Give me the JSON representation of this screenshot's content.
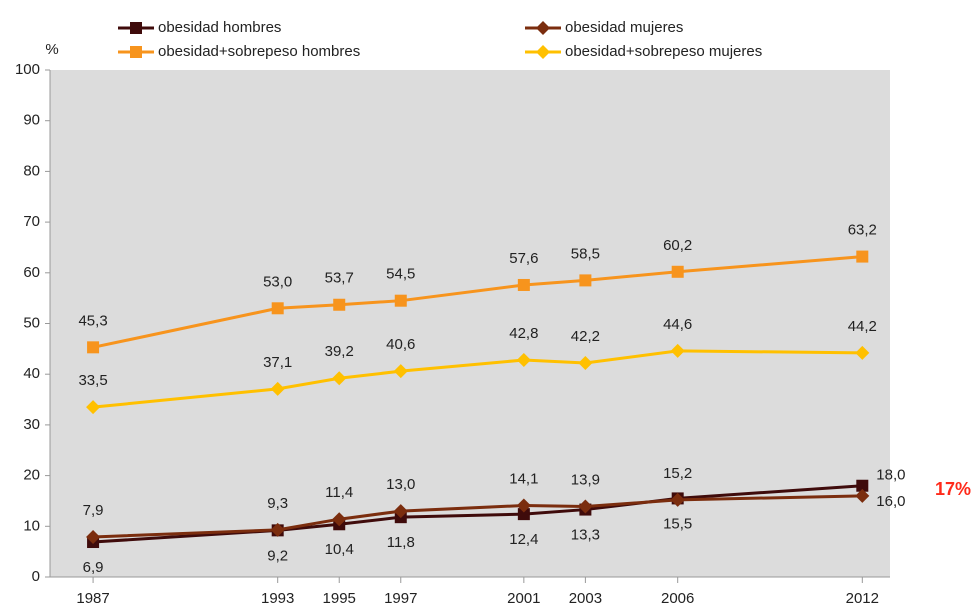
{
  "chart_data": {
    "type": "line",
    "y_label": "%",
    "annotation": "17%",
    "x": [
      1987,
      1993,
      1995,
      1997,
      2001,
      2003,
      2006,
      2012
    ],
    "xticks": [
      1987,
      1993,
      1995,
      1997,
      2001,
      2003,
      2006,
      2012
    ],
    "xlim": [
      1985.6,
      2012.9
    ],
    "ylim": [
      0,
      100
    ],
    "yticks": [
      0,
      10,
      20,
      30,
      40,
      50,
      60,
      70,
      80,
      90,
      100
    ],
    "series": [
      {
        "name": "obesidad hombres",
        "color": "#3f0b0b",
        "marker": "square",
        "values": [
          6.9,
          9.2,
          10.4,
          11.8,
          12.4,
          13.3,
          15.5,
          18.0
        ],
        "value_labels": [
          "6,9",
          "9,2",
          "10,4",
          "11,8",
          "12,4",
          "13,3",
          "15,5",
          "18,0"
        ]
      },
      {
        "name": "obesidad mujeres",
        "color": "#7b2d0e",
        "marker": "diamond",
        "values": [
          7.9,
          9.3,
          11.4,
          13.0,
          14.1,
          13.9,
          15.2,
          16.0
        ],
        "value_labels": [
          "7,9",
          "9,3",
          "11,4",
          "13,0",
          "14,1",
          "13,9",
          "15,2",
          "16,0"
        ]
      },
      {
        "name": "obesidad+sobrepeso hombres",
        "color": "#f7941d",
        "marker": "square",
        "values": [
          45.3,
          53.0,
          53.7,
          54.5,
          57.6,
          58.5,
          60.2,
          63.2
        ],
        "value_labels": [
          "45,3",
          "53,0",
          "53,7",
          "54,5",
          "57,6",
          "58,5",
          "60,2",
          "63,2"
        ]
      },
      {
        "name": "obesidad+sobrepeso mujeres",
        "color": "#ffc000",
        "marker": "diamond",
        "values": [
          33.5,
          37.1,
          39.2,
          40.6,
          42.8,
          42.2,
          44.6,
          44.2
        ],
        "value_labels": [
          "33,5",
          "37,1",
          "39,2",
          "40,6",
          "42,8",
          "42,2",
          "44,6",
          "44,2"
        ]
      }
    ]
  }
}
